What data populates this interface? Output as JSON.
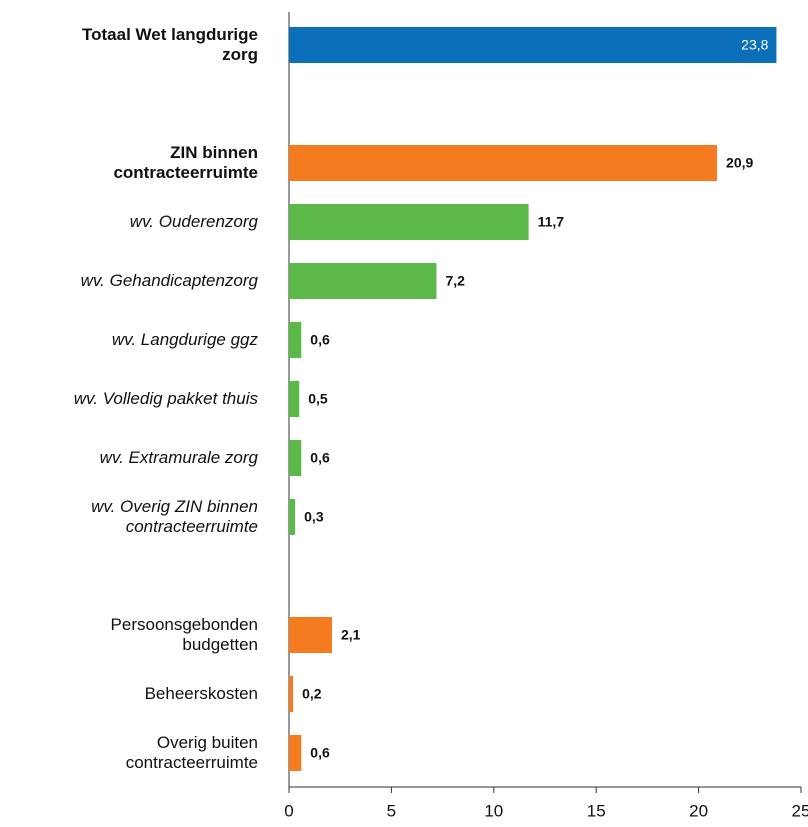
{
  "chart_data": {
    "type": "hbar",
    "categories": [
      "Totaal Wet langdurige\nzorg",
      null,
      "ZIN binnen\ncontracteerruimte",
      "wv. Ouderenzorg",
      "wv. Gehandicaptenzorg",
      "wv. Langdurige ggz",
      "wv. Volledig pakket thuis",
      "wv. Extramurale zorg",
      "wv. Overig ZIN binnen\ncontracteerruimte",
      null,
      "Persoonsgebonden\nbudgetten",
      "Beheerskosten",
      "Overig buiten\ncontracteerruimte"
    ],
    "values": [
      23.8,
      null,
      20.9,
      11.7,
      7.2,
      0.6,
      0.5,
      0.6,
      0.3,
      null,
      2.1,
      0.2,
      0.6
    ],
    "value_labels": [
      "23,8",
      null,
      "20,9",
      "11,7",
      "7,2",
      "0,6",
      "0,5",
      "0,6",
      "0,3",
      null,
      "2,1",
      "0,2",
      "0,6"
    ],
    "colors": [
      "#0a6fb8",
      null,
      "#f47b20",
      "#5cb848",
      "#5cb848",
      "#5cb848",
      "#5cb848",
      "#5cb848",
      "#5cb848",
      null,
      "#f47b20",
      "#f47b20",
      "#f47b20"
    ],
    "label_styles": [
      "bold",
      null,
      "bold",
      "italic",
      "italic",
      "italic",
      "italic",
      "italic",
      "italic",
      null,
      "normal",
      "normal",
      "normal"
    ],
    "xlim": [
      0,
      25
    ],
    "xticks": [
      0,
      5,
      10,
      15,
      20,
      25
    ]
  }
}
